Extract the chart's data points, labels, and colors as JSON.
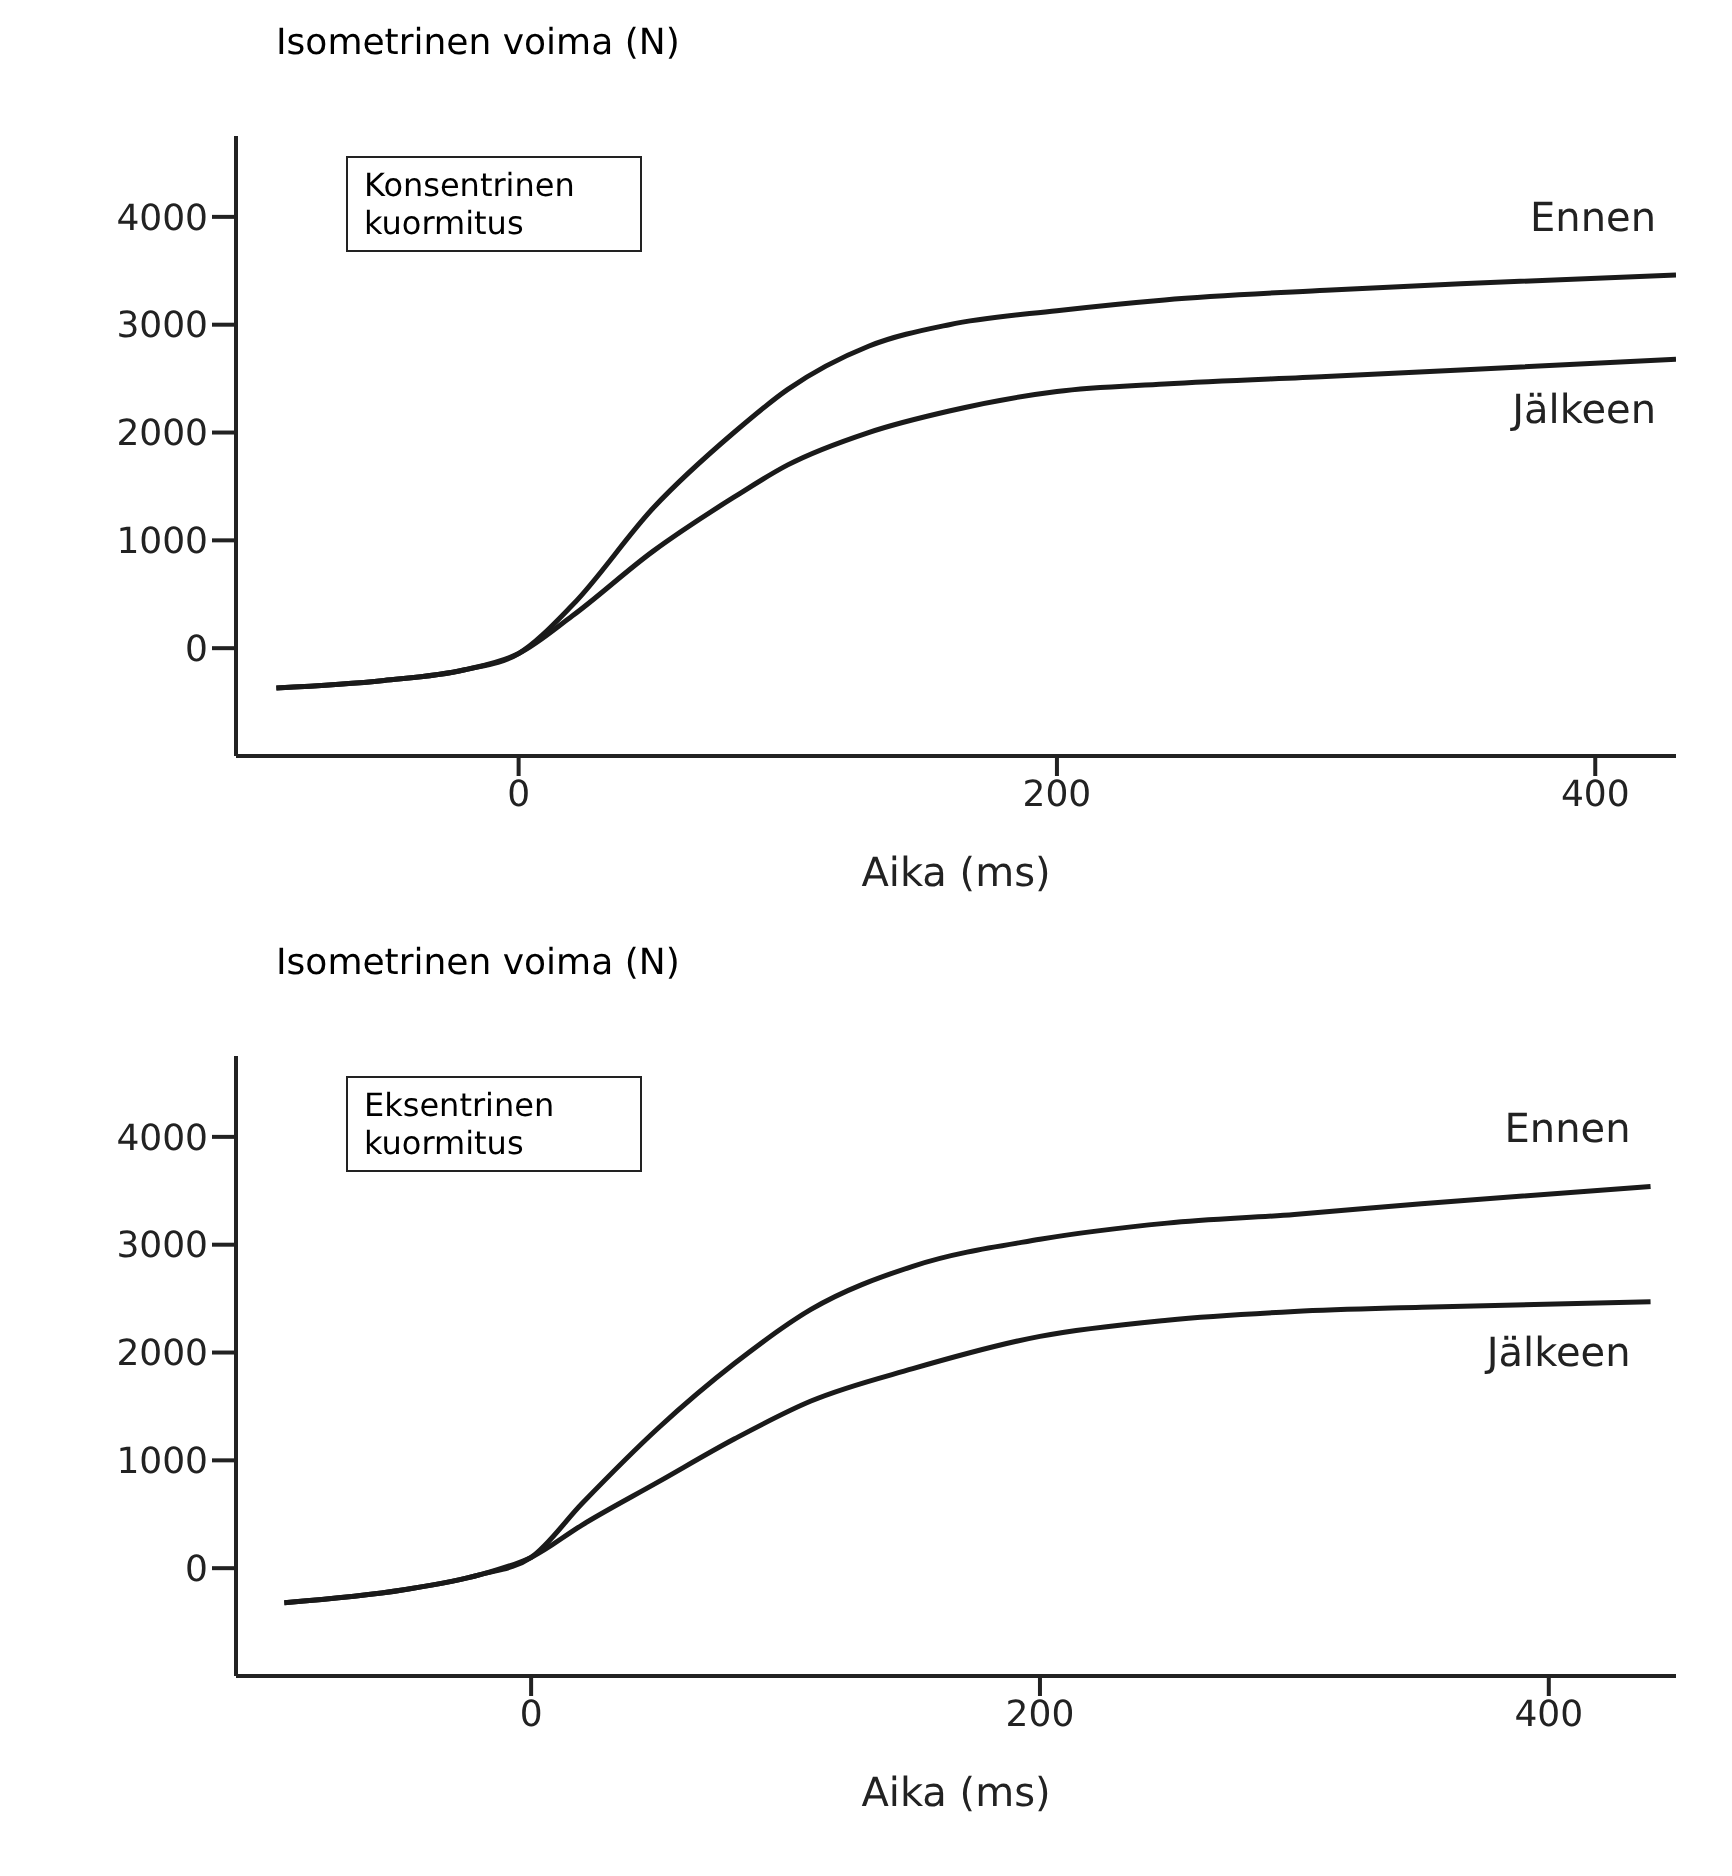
{
  "chart_data": [
    {
      "type": "line",
      "ylabel": "Isometrinen voima (N)",
      "xlabel": "Aika (ms)",
      "annotations": [
        "Konsentrinen kuormitus"
      ],
      "xlim": [
        -105,
        430
      ],
      "xticks": [
        0,
        200,
        400
      ],
      "ylim": [
        -1000,
        4750
      ],
      "yticks": [
        0,
        1000,
        2000,
        3000,
        4000
      ],
      "grid": false,
      "legend": false,
      "marker": "none",
      "line_style": "solid",
      "series": [
        {
          "name": "Ennen",
          "color": "#1a1a1a",
          "x": [
            -90,
            -50,
            -20,
            0,
            20,
            50,
            80,
            100,
            130,
            160,
            200,
            240,
            300,
            350,
            430
          ],
          "values": [
            -370,
            -300,
            -200,
            -50,
            400,
            1300,
            2000,
            2400,
            2800,
            3000,
            3130,
            3230,
            3320,
            3380,
            3460
          ]
        },
        {
          "name": "Jälkeen",
          "color": "#1a1a1a",
          "x": [
            -90,
            -50,
            -20,
            0,
            20,
            50,
            80,
            100,
            130,
            160,
            200,
            240,
            300,
            350,
            430
          ],
          "values": [
            -370,
            -300,
            -200,
            -50,
            300,
            900,
            1400,
            1700,
            2000,
            2200,
            2380,
            2450,
            2520,
            2580,
            2680
          ]
        }
      ]
    },
    {
      "type": "line",
      "ylabel": "Isometrinen voima (N)",
      "xlabel": "Aika (ms)",
      "annotations": [
        "Eksentrinen kuormitus"
      ],
      "xlim": [
        -116,
        450
      ],
      "xticks": [
        0,
        200,
        400
      ],
      "ylim": [
        -1000,
        4750
      ],
      "yticks": [
        0,
        1000,
        2000,
        3000,
        4000
      ],
      "grid": false,
      "legend": false,
      "marker": "none",
      "line_style": "solid",
      "series": [
        {
          "name": "Ennen",
          "color": "#1a1a1a",
          "x": [
            -97,
            -50,
            -20,
            0,
            20,
            50,
            80,
            110,
            150,
            200,
            250,
            300,
            350,
            440
          ],
          "values": [
            -320,
            -200,
            -60,
            100,
            600,
            1300,
            1900,
            2400,
            2800,
            3050,
            3200,
            3280,
            3380,
            3540
          ]
        },
        {
          "name": "Jälkeen",
          "color": "#1a1a1a",
          "x": [
            -97,
            -50,
            -20,
            0,
            20,
            50,
            80,
            110,
            150,
            200,
            250,
            300,
            350,
            440
          ],
          "values": [
            -320,
            -200,
            -60,
            100,
            400,
            800,
            1200,
            1550,
            1850,
            2150,
            2300,
            2380,
            2420,
            2470
          ]
        }
      ]
    }
  ]
}
